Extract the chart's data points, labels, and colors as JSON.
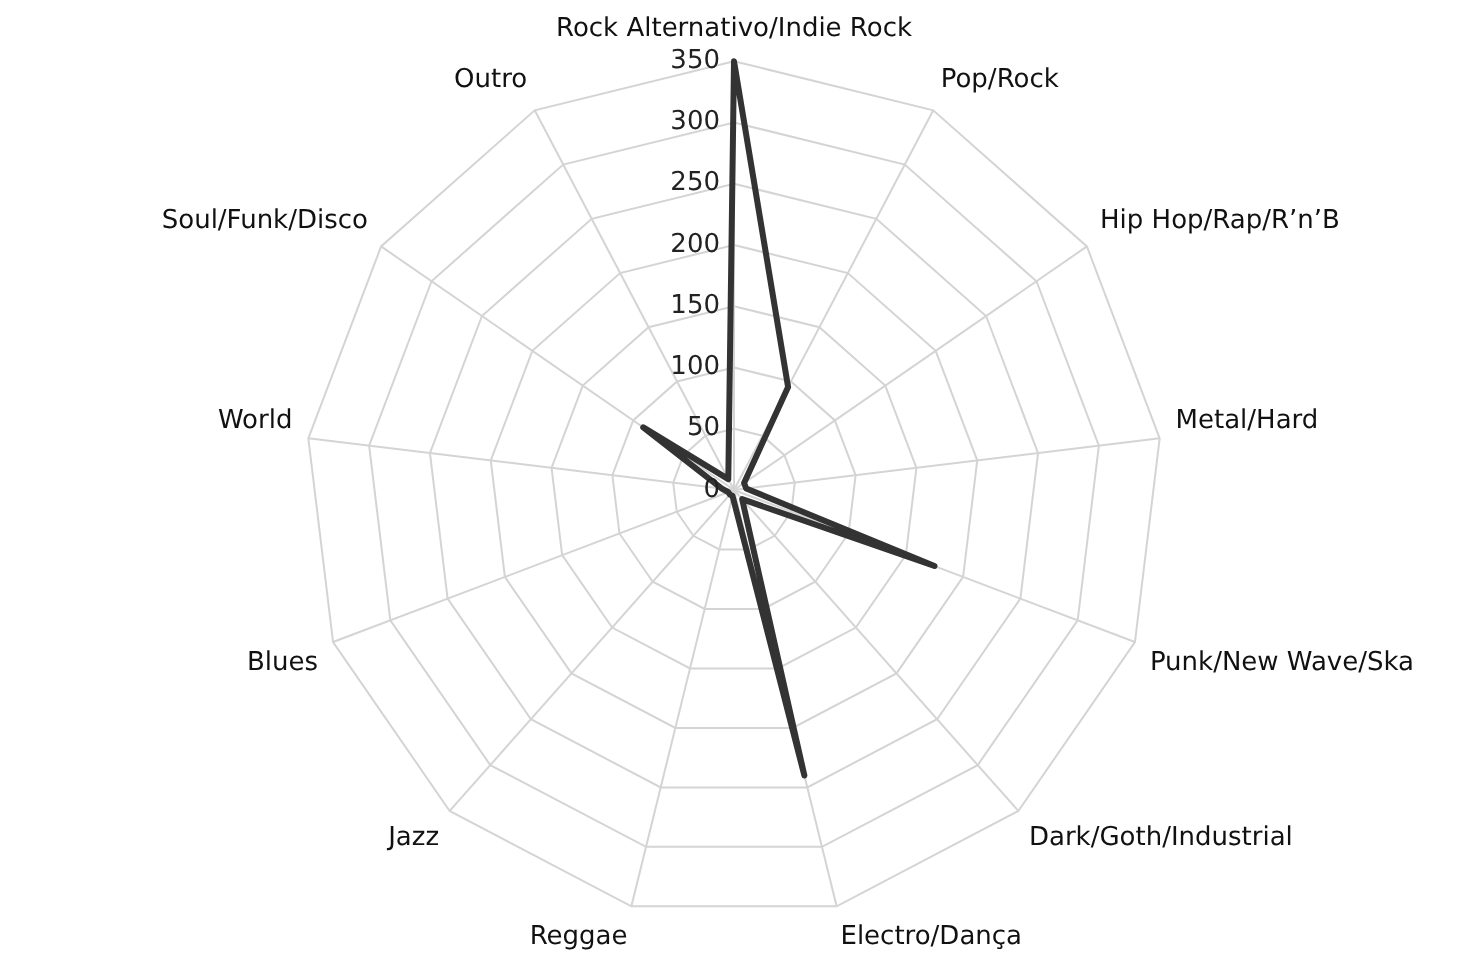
{
  "chart_data": {
    "type": "radar",
    "categories": [
      "Rock Alternativo/Indie Rock",
      "Pop/Rock",
      "Hip Hop/Rap/R’n’B",
      "Metal/Hard",
      "Punk/New Wave/Ska",
      "Dark/Goth/Industrial",
      "Electro/Dança",
      "Reggae",
      "Jazz",
      "Blues",
      "World",
      "Soul/Funk/Disco",
      "Outro"
    ],
    "series": [
      {
        "color": "#333333",
        "values": [
          350,
          95,
          10,
          10,
          175,
          10,
          240,
          5,
          5,
          5,
          10,
          90,
          10
        ]
      }
    ],
    "ylim": [
      0,
      350
    ],
    "yticks": [
      0,
      50,
      100,
      150,
      200,
      250,
      300,
      350
    ],
    "grid": true,
    "legend": false,
    "marker": "none",
    "line_style": "solid"
  }
}
